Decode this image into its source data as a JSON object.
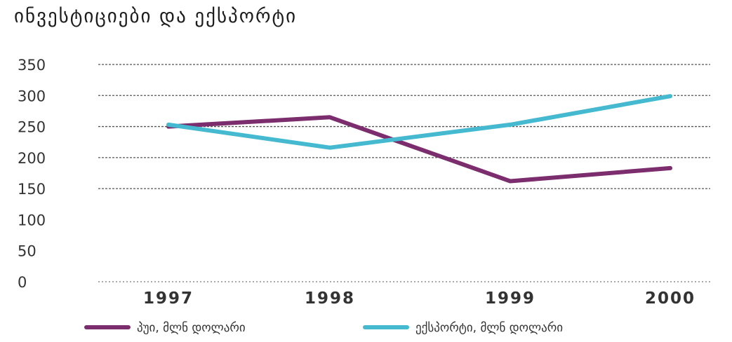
{
  "chart_data": {
    "type": "line",
    "title": "ინვესტიციები და ექსპორტი",
    "categories": [
      "1997",
      "1998",
      "1999",
      "2000"
    ],
    "series": [
      {
        "name": "პუი, მლნ დოლარი",
        "color": "#7b2d6e",
        "values": [
          250,
          265,
          162,
          183
        ]
      },
      {
        "name": "ექსპორტი, მლნ დოლარი",
        "color": "#45b9cf",
        "values": [
          253,
          216,
          253,
          299
        ]
      }
    ],
    "yticks": [
      0,
      50,
      100,
      150,
      200,
      250,
      300,
      350
    ],
    "ylim": [
      0,
      350
    ],
    "gridlines": [
      150,
      200,
      250,
      300,
      350
    ],
    "grid_style": "dashed",
    "legend_position": "bottom",
    "xlabel": "",
    "ylabel": ""
  }
}
